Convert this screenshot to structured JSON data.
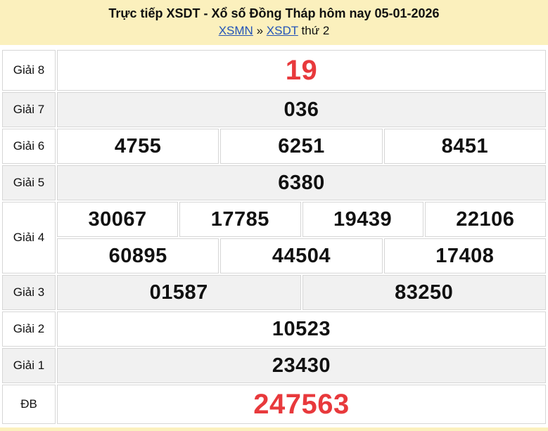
{
  "header": {
    "title": "Trực tiếp XSDT - Xổ số Đồng Tháp hôm nay 05-01-2026",
    "breadcrumb": {
      "link1": "XSMN",
      "separator": "»",
      "link2": "XSDT",
      "suffix": "thứ 2"
    }
  },
  "results": {
    "rows": [
      {
        "label": "Giải 8",
        "shaded": false,
        "highlight": "red",
        "lines": [
          [
            "19"
          ]
        ]
      },
      {
        "label": "Giải 7",
        "shaded": true,
        "lines": [
          [
            "036"
          ]
        ]
      },
      {
        "label": "Giải 6",
        "shaded": false,
        "lines": [
          [
            "4755",
            "6251",
            "8451"
          ]
        ]
      },
      {
        "label": "Giải 5",
        "shaded": true,
        "lines": [
          [
            "6380"
          ]
        ]
      },
      {
        "label": "Giải 4",
        "shaded": false,
        "lines": [
          [
            "30067",
            "17785",
            "19439",
            "22106"
          ],
          [
            "60895",
            "44504",
            "17408"
          ]
        ]
      },
      {
        "label": "Giải 3",
        "shaded": true,
        "lines": [
          [
            "01587",
            "83250"
          ]
        ]
      },
      {
        "label": "Giải 2",
        "shaded": false,
        "lines": [
          [
            "10523"
          ]
        ]
      },
      {
        "label": "Giải 1",
        "shaded": true,
        "lines": [
          [
            "23430"
          ]
        ]
      },
      {
        "label": "ĐB",
        "shaded": false,
        "highlight": "red",
        "lines": [
          [
            "247563"
          ]
        ]
      }
    ]
  },
  "colors": {
    "header_bg": "#FBF0BD",
    "row_shaded": "#F1F1F1",
    "border": "#D6D6D6",
    "red_number": "#E8393C",
    "link_blue": "#2353B8"
  }
}
